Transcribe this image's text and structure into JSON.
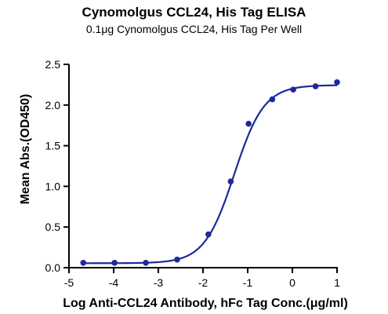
{
  "chart_data": {
    "type": "scatter",
    "title": "Cynomolgus CCL24, His Tag ELISA",
    "subtitle": "0.1μg Cynomolgus CCL24, His Tag Per Well",
    "xlabel": "Log Anti-CCL24 Antibody, hFc Tag Conc.(μg/ml)",
    "ylabel": "Mean Abs.(OD450)",
    "xlim": [
      -5,
      1
    ],
    "ylim": [
      0,
      2.5
    ],
    "x_ticks": [
      "-5",
      "-4",
      "-3",
      "-2",
      "-1",
      "0",
      "1"
    ],
    "y_ticks": [
      "0.0",
      "0.5",
      "1.0",
      "1.5",
      "2.0",
      "2.5"
    ],
    "grid": false,
    "series": [
      {
        "points": {
          "x": [
            -4.68,
            -3.98,
            -3.28,
            -2.58,
            -1.88,
            -1.38,
            -0.98,
            -0.45,
            0.02,
            0.52,
            1.0
          ],
          "y": [
            0.06,
            0.06,
            0.06,
            0.1,
            0.41,
            1.06,
            1.77,
            2.07,
            2.19,
            2.23,
            2.28
          ]
        },
        "fit": {
          "type": "four-parameter-logistic",
          "bottom": 0.055,
          "top": 2.245,
          "log_ec50": -1.3,
          "hill_slope": 1.3
        }
      }
    ],
    "color": "#1c2a9c"
  }
}
